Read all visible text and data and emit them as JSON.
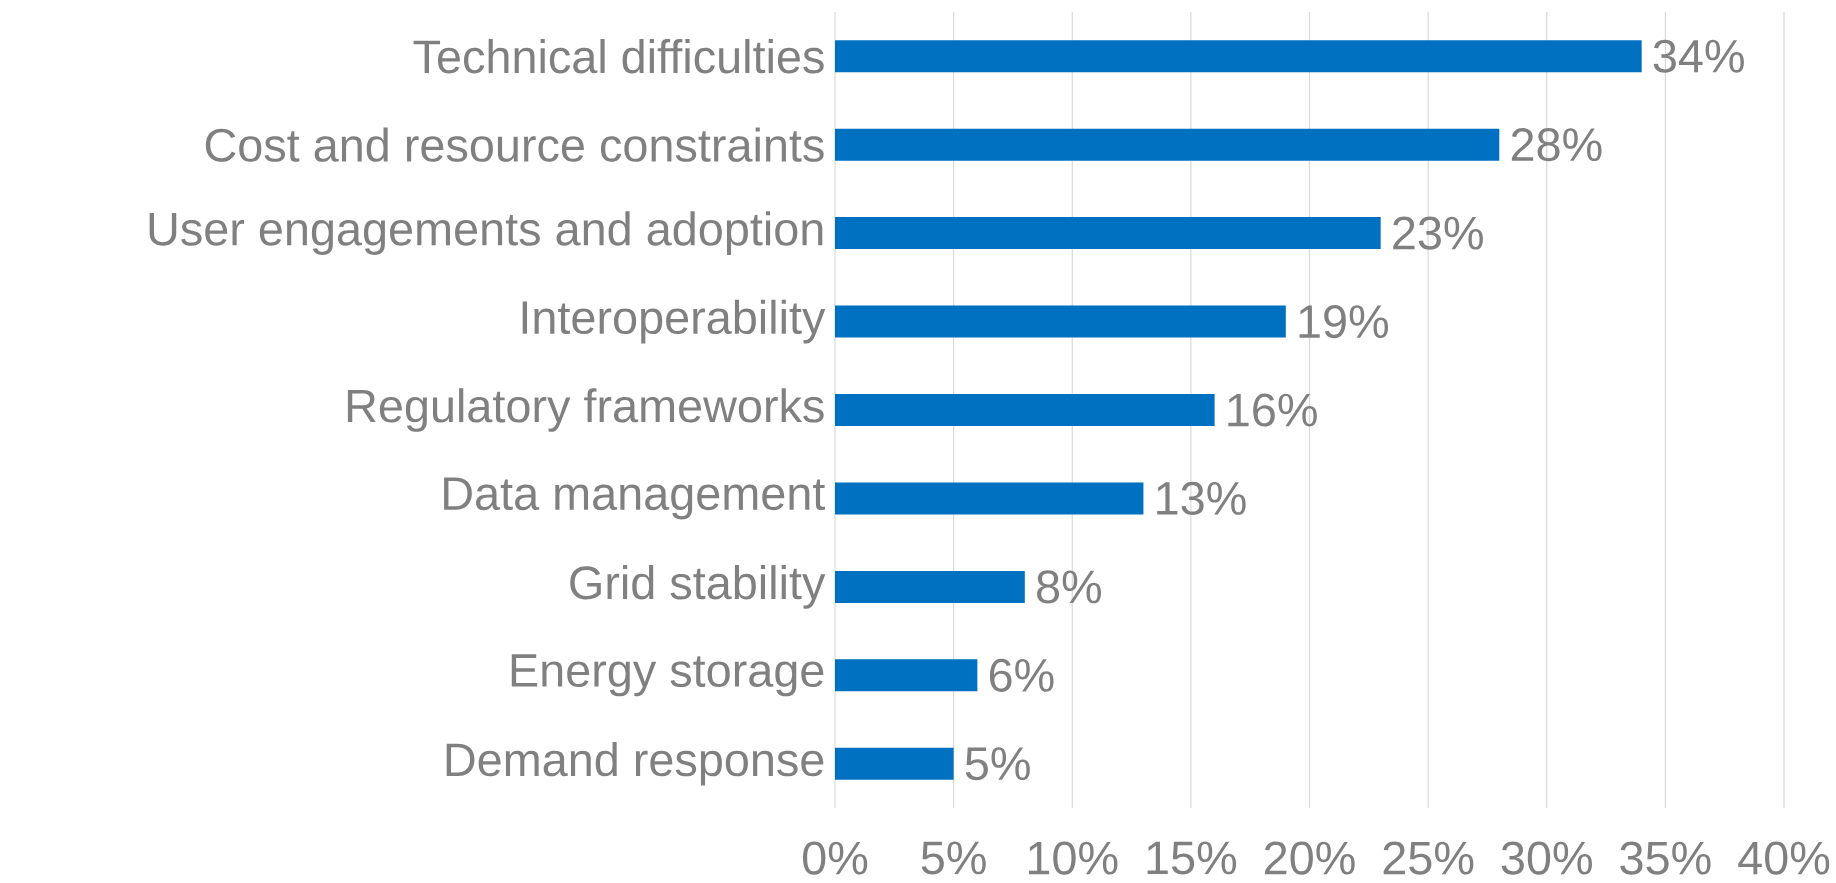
{
  "chart_data": {
    "type": "bar",
    "orientation": "horizontal",
    "categories": [
      "Technical difficulties",
      "Cost and resource constraints",
      "User engagements and adoption",
      "Interoperability",
      "Regulatory frameworks",
      "Data management",
      "Grid stability",
      "Energy storage",
      "Demand response"
    ],
    "values": [
      34,
      28,
      23,
      19,
      16,
      13,
      8,
      6,
      5
    ],
    "value_labels": [
      "34%",
      "28%",
      "23%",
      "19%",
      "16%",
      "13%",
      "8%",
      "6%",
      "5%"
    ],
    "color": "#0070c0",
    "xlim": [
      0,
      40
    ],
    "xticks": [
      {
        "value": 0,
        "label": "0%"
      },
      {
        "value": 5,
        "label": "5%"
      },
      {
        "value": 10,
        "label": "10%"
      },
      {
        "value": 15,
        "label": "15%"
      },
      {
        "value": 20,
        "label": "20%"
      },
      {
        "value": 25,
        "label": "25%"
      },
      {
        "value": 30,
        "label": "30%"
      },
      {
        "value": 35,
        "label": "35%"
      },
      {
        "value": 40,
        "label": "40%"
      }
    ],
    "grid": "x"
  }
}
